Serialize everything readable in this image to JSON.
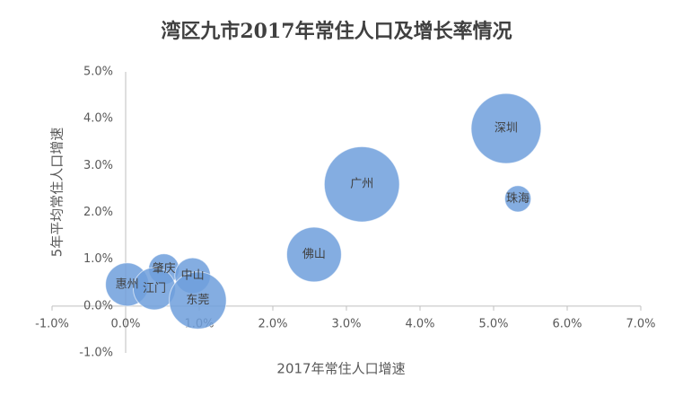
{
  "chart_data": {
    "type": "bubble",
    "title": "湾区九市2017年常住人口及增长率情况",
    "xlabel": "2017年常住人口增速",
    "ylabel": "5年平均常住人口增速",
    "color": "#6f9fdc",
    "labels": [
      "深圳",
      "珠海",
      "广州",
      "佛山",
      "肇庆",
      "中山",
      "惠州",
      "江门",
      "东莞"
    ],
    "x": [
      5.17,
      5.33,
      3.21,
      2.56,
      0.52,
      0.91,
      0.02,
      0.39,
      0.98
    ],
    "y": [
      3.79,
      2.29,
      2.6,
      1.1,
      0.79,
      0.65,
      0.46,
      0.37,
      0.12
    ],
    "sizes": [
      1253,
      177,
      1450,
      766,
      240,
      326,
      478,
      456,
      834
    ],
    "xlim": [
      -1,
      7
    ],
    "ylim": [
      -1,
      5
    ],
    "xticks": [
      {
        "value": -1,
        "label": "-1.0%"
      },
      {
        "value": 0,
        "label": "0.0%"
      },
      {
        "value": 1,
        "label": "1.0%"
      },
      {
        "value": 2,
        "label": "2.0%"
      },
      {
        "value": 3,
        "label": "3.0%"
      },
      {
        "value": 4,
        "label": "4.0%"
      },
      {
        "value": 5,
        "label": "5.0%"
      },
      {
        "value": 6,
        "label": "6.0%"
      },
      {
        "value": 7,
        "label": "7.0%"
      }
    ],
    "yticks": [
      {
        "value": -1,
        "label": "-1.0%"
      },
      {
        "value": 0,
        "label": "0.0%"
      },
      {
        "value": 1,
        "label": "1.0%"
      },
      {
        "value": 2,
        "label": "2.0%"
      },
      {
        "value": 3,
        "label": "3.0%"
      },
      {
        "value": 4,
        "label": "4.0%"
      },
      {
        "value": 5,
        "label": "5.0%"
      }
    ]
  }
}
